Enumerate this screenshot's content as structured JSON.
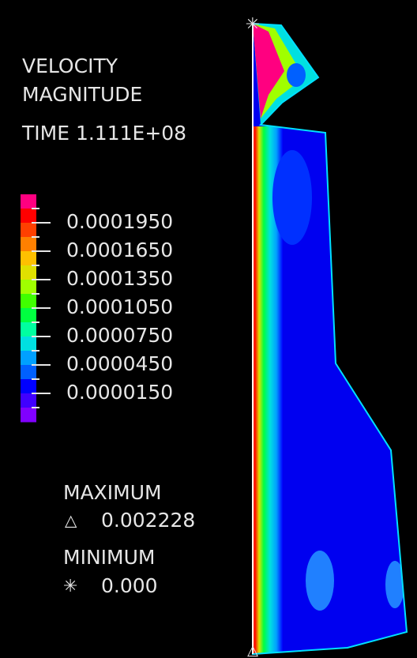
{
  "title": [
    "VELOCITY",
    "MAGNITUDE"
  ],
  "time": "TIME 1.111E+08",
  "legend": {
    "colors": [
      "#ff0080",
      "#ff0000",
      "#ff4000",
      "#ff8000",
      "#ffc000",
      "#e0e000",
      "#a0ff00",
      "#40ff00",
      "#00ff40",
      "#00ffa0",
      "#00e0e0",
      "#00a0ff",
      "#0060ff",
      "#0000ff",
      "#4000ff",
      "#8000ff"
    ],
    "labels": [
      "0.0001950",
      "0.0001650",
      "0.0001350",
      "0.0001050",
      "0.0000750",
      "0.0000450",
      "0.0000150"
    ]
  },
  "maximum": {
    "label": "MAXIMUM",
    "value": "0.002228"
  },
  "minimum": {
    "label": "MINIMUM",
    "value": "0.000"
  }
}
